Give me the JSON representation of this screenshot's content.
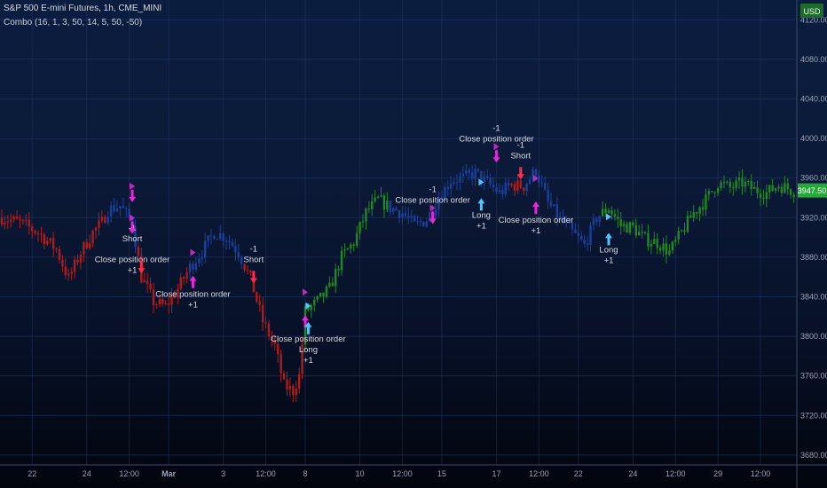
{
  "header": {
    "symbol": "S&P 500 E-mini Futures, 1h, CME_MINI",
    "indicator": "Combo (16, 1, 3, 50, 14, 5, 50, -50)"
  },
  "price_axis": {
    "currency": "USD",
    "last_price": "3947.50",
    "last_price_color": "#26a93b",
    "ticks": [
      "4120.00",
      "4080.00",
      "4040.00",
      "4000.00",
      "3960.00",
      "3920.00",
      "3880.00",
      "3840.00",
      "3800.00",
      "3760.00",
      "3720.00",
      "3680.00"
    ]
  },
  "time_axis": {
    "ticks": [
      {
        "label": "22",
        "bar": 10
      },
      {
        "label": "24",
        "bar": 28
      },
      {
        "label": "12:00",
        "bar": 42
      },
      {
        "label": "Mar",
        "bar": 55,
        "bold": true
      },
      {
        "label": "3",
        "bar": 73
      },
      {
        "label": "12:00",
        "bar": 87
      },
      {
        "label": "8",
        "bar": 100
      },
      {
        "label": "10",
        "bar": 118
      },
      {
        "label": "12:00",
        "bar": 132
      },
      {
        "label": "15",
        "bar": 145
      },
      {
        "label": "17",
        "bar": 163
      },
      {
        "label": "12:00",
        "bar": 177
      },
      {
        "label": "22",
        "bar": 190
      },
      {
        "label": "24",
        "bar": 208
      },
      {
        "label": "12:00",
        "bar": 222
      },
      {
        "label": "29",
        "bar": 236
      },
      {
        "label": "12:00",
        "bar": 250
      }
    ]
  },
  "colors": {
    "bull": "#1f8a1f",
    "bear": "#b01c1c",
    "neutral": "#1c3f99",
    "long_arrow": "#4dc6ff",
    "short_arrow": "#ff2b4a",
    "close_marker": "#e22ad8",
    "grid": "#1d3360",
    "label_text": "#d9dbe3",
    "axis_text": "#9aa3b5"
  },
  "chart_data": {
    "type": "candlestick",
    "title": "S&P 500 E-mini Futures, 1h, CME_MINI",
    "ylim": [
      3670,
      4140
    ],
    "grid": true,
    "bar_count": 262,
    "segments": [
      {
        "from": 0,
        "to": 35,
        "color": "bear"
      },
      {
        "from": 35,
        "to": 45,
        "color": "neutral"
      },
      {
        "from": 45,
        "to": 62,
        "color": "bear"
      },
      {
        "from": 62,
        "to": 80,
        "color": "neutral"
      },
      {
        "from": 80,
        "to": 100,
        "color": "bear"
      },
      {
        "from": 100,
        "to": 128,
        "color": "bull"
      },
      {
        "from": 128,
        "to": 168,
        "color": "neutral"
      },
      {
        "from": 168,
        "to": 173,
        "color": "bear"
      },
      {
        "from": 173,
        "to": 198,
        "color": "neutral"
      },
      {
        "from": 198,
        "to": 262,
        "color": "bull"
      }
    ],
    "price_path": [
      [
        0,
        3920
      ],
      [
        6,
        3915
      ],
      [
        12,
        3905
      ],
      [
        18,
        3888
      ],
      [
        22,
        3858
      ],
      [
        26,
        3885
      ],
      [
        30,
        3905
      ],
      [
        33,
        3915
      ],
      [
        35,
        3928
      ],
      [
        39,
        3932
      ],
      [
        43,
        3915
      ],
      [
        46,
        3860
      ],
      [
        50,
        3835
      ],
      [
        54,
        3830
      ],
      [
        58,
        3848
      ],
      [
        62,
        3870
      ],
      [
        66,
        3886
      ],
      [
        70,
        3905
      ],
      [
        74,
        3900
      ],
      [
        78,
        3885
      ],
      [
        82,
        3858
      ],
      [
        86,
        3815
      ],
      [
        90,
        3790
      ],
      [
        93,
        3750
      ],
      [
        96,
        3745
      ],
      [
        98,
        3760
      ],
      [
        100,
        3825
      ],
      [
        104,
        3835
      ],
      [
        108,
        3848
      ],
      [
        112,
        3880
      ],
      [
        116,
        3895
      ],
      [
        120,
        3925
      ],
      [
        124,
        3938
      ],
      [
        128,
        3930
      ],
      [
        132,
        3925
      ],
      [
        136,
        3912
      ],
      [
        140,
        3918
      ],
      [
        144,
        3940
      ],
      [
        148,
        3958
      ],
      [
        152,
        3960
      ],
      [
        156,
        3965
      ],
      [
        160,
        3955
      ],
      [
        164,
        3945
      ],
      [
        168,
        3953
      ],
      [
        172,
        3952
      ],
      [
        176,
        3968
      ],
      [
        180,
        3935
      ],
      [
        184,
        3918
      ],
      [
        188,
        3905
      ],
      [
        192,
        3892
      ],
      [
        196,
        3920
      ],
      [
        200,
        3930
      ],
      [
        204,
        3912
      ],
      [
        208,
        3910
      ],
      [
        212,
        3898
      ],
      [
        216,
        3895
      ],
      [
        220,
        3885
      ],
      [
        224,
        3905
      ],
      [
        228,
        3925
      ],
      [
        232,
        3938
      ],
      [
        236,
        3955
      ],
      [
        240,
        3950
      ],
      [
        244,
        3955
      ],
      [
        248,
        3948
      ],
      [
        252,
        3945
      ],
      [
        256,
        3953
      ],
      [
        261,
        3947
      ]
    ],
    "signals": [
      {
        "type": "close",
        "dir": "down",
        "bar": 43,
        "price": 3932,
        "lines": [
          "-1",
          "Short"
        ],
        "pos": "below"
      },
      {
        "type": "close",
        "dir": "down",
        "bar": 43,
        "price": 3900,
        "lines": [
          "Close position order",
          "+1"
        ],
        "pos": "below"
      },
      {
        "type": "short",
        "bar": 46,
        "price": 3860,
        "lines": [],
        "pos": "above"
      },
      {
        "type": "close",
        "dir": "up",
        "bar": 63,
        "price": 3865,
        "lines": [
          "Close position order",
          "+1"
        ],
        "pos": "below"
      },
      {
        "type": "short",
        "bar": 83,
        "price": 3850,
        "lines": [
          "-1",
          "Short"
        ],
        "pos": "above"
      },
      {
        "type": "close",
        "dir": "up",
        "bar": 100,
        "price": 3825,
        "lines": [],
        "pos": "below"
      },
      {
        "type": "long",
        "bar": 101,
        "price": 3820,
        "lines": [
          "Close position order",
          "Long",
          "+1"
        ],
        "pos": "below"
      },
      {
        "type": "close",
        "dir": "down",
        "bar": 142,
        "price": 3910,
        "lines": [
          "-1",
          "Close position order"
        ],
        "pos": "above"
      },
      {
        "type": "long",
        "bar": 158,
        "price": 3945,
        "lines": [
          "Long",
          "+1"
        ],
        "pos": "below"
      },
      {
        "type": "close",
        "dir": "down",
        "bar": 163,
        "price": 3972,
        "lines": [
          "-1",
          "Close position order"
        ],
        "pos": "above"
      },
      {
        "type": "short",
        "bar": 171,
        "price": 3955,
        "lines": [
          "-1",
          "Short"
        ],
        "pos": "above"
      },
      {
        "type": "close",
        "dir": "up",
        "bar": 176,
        "price": 3940,
        "lines": [
          "Close position order",
          "+1"
        ],
        "pos": "below"
      },
      {
        "type": "long",
        "bar": 200,
        "price": 3910,
        "lines": [
          "Long",
          "+1"
        ],
        "pos": "below"
      }
    ]
  }
}
